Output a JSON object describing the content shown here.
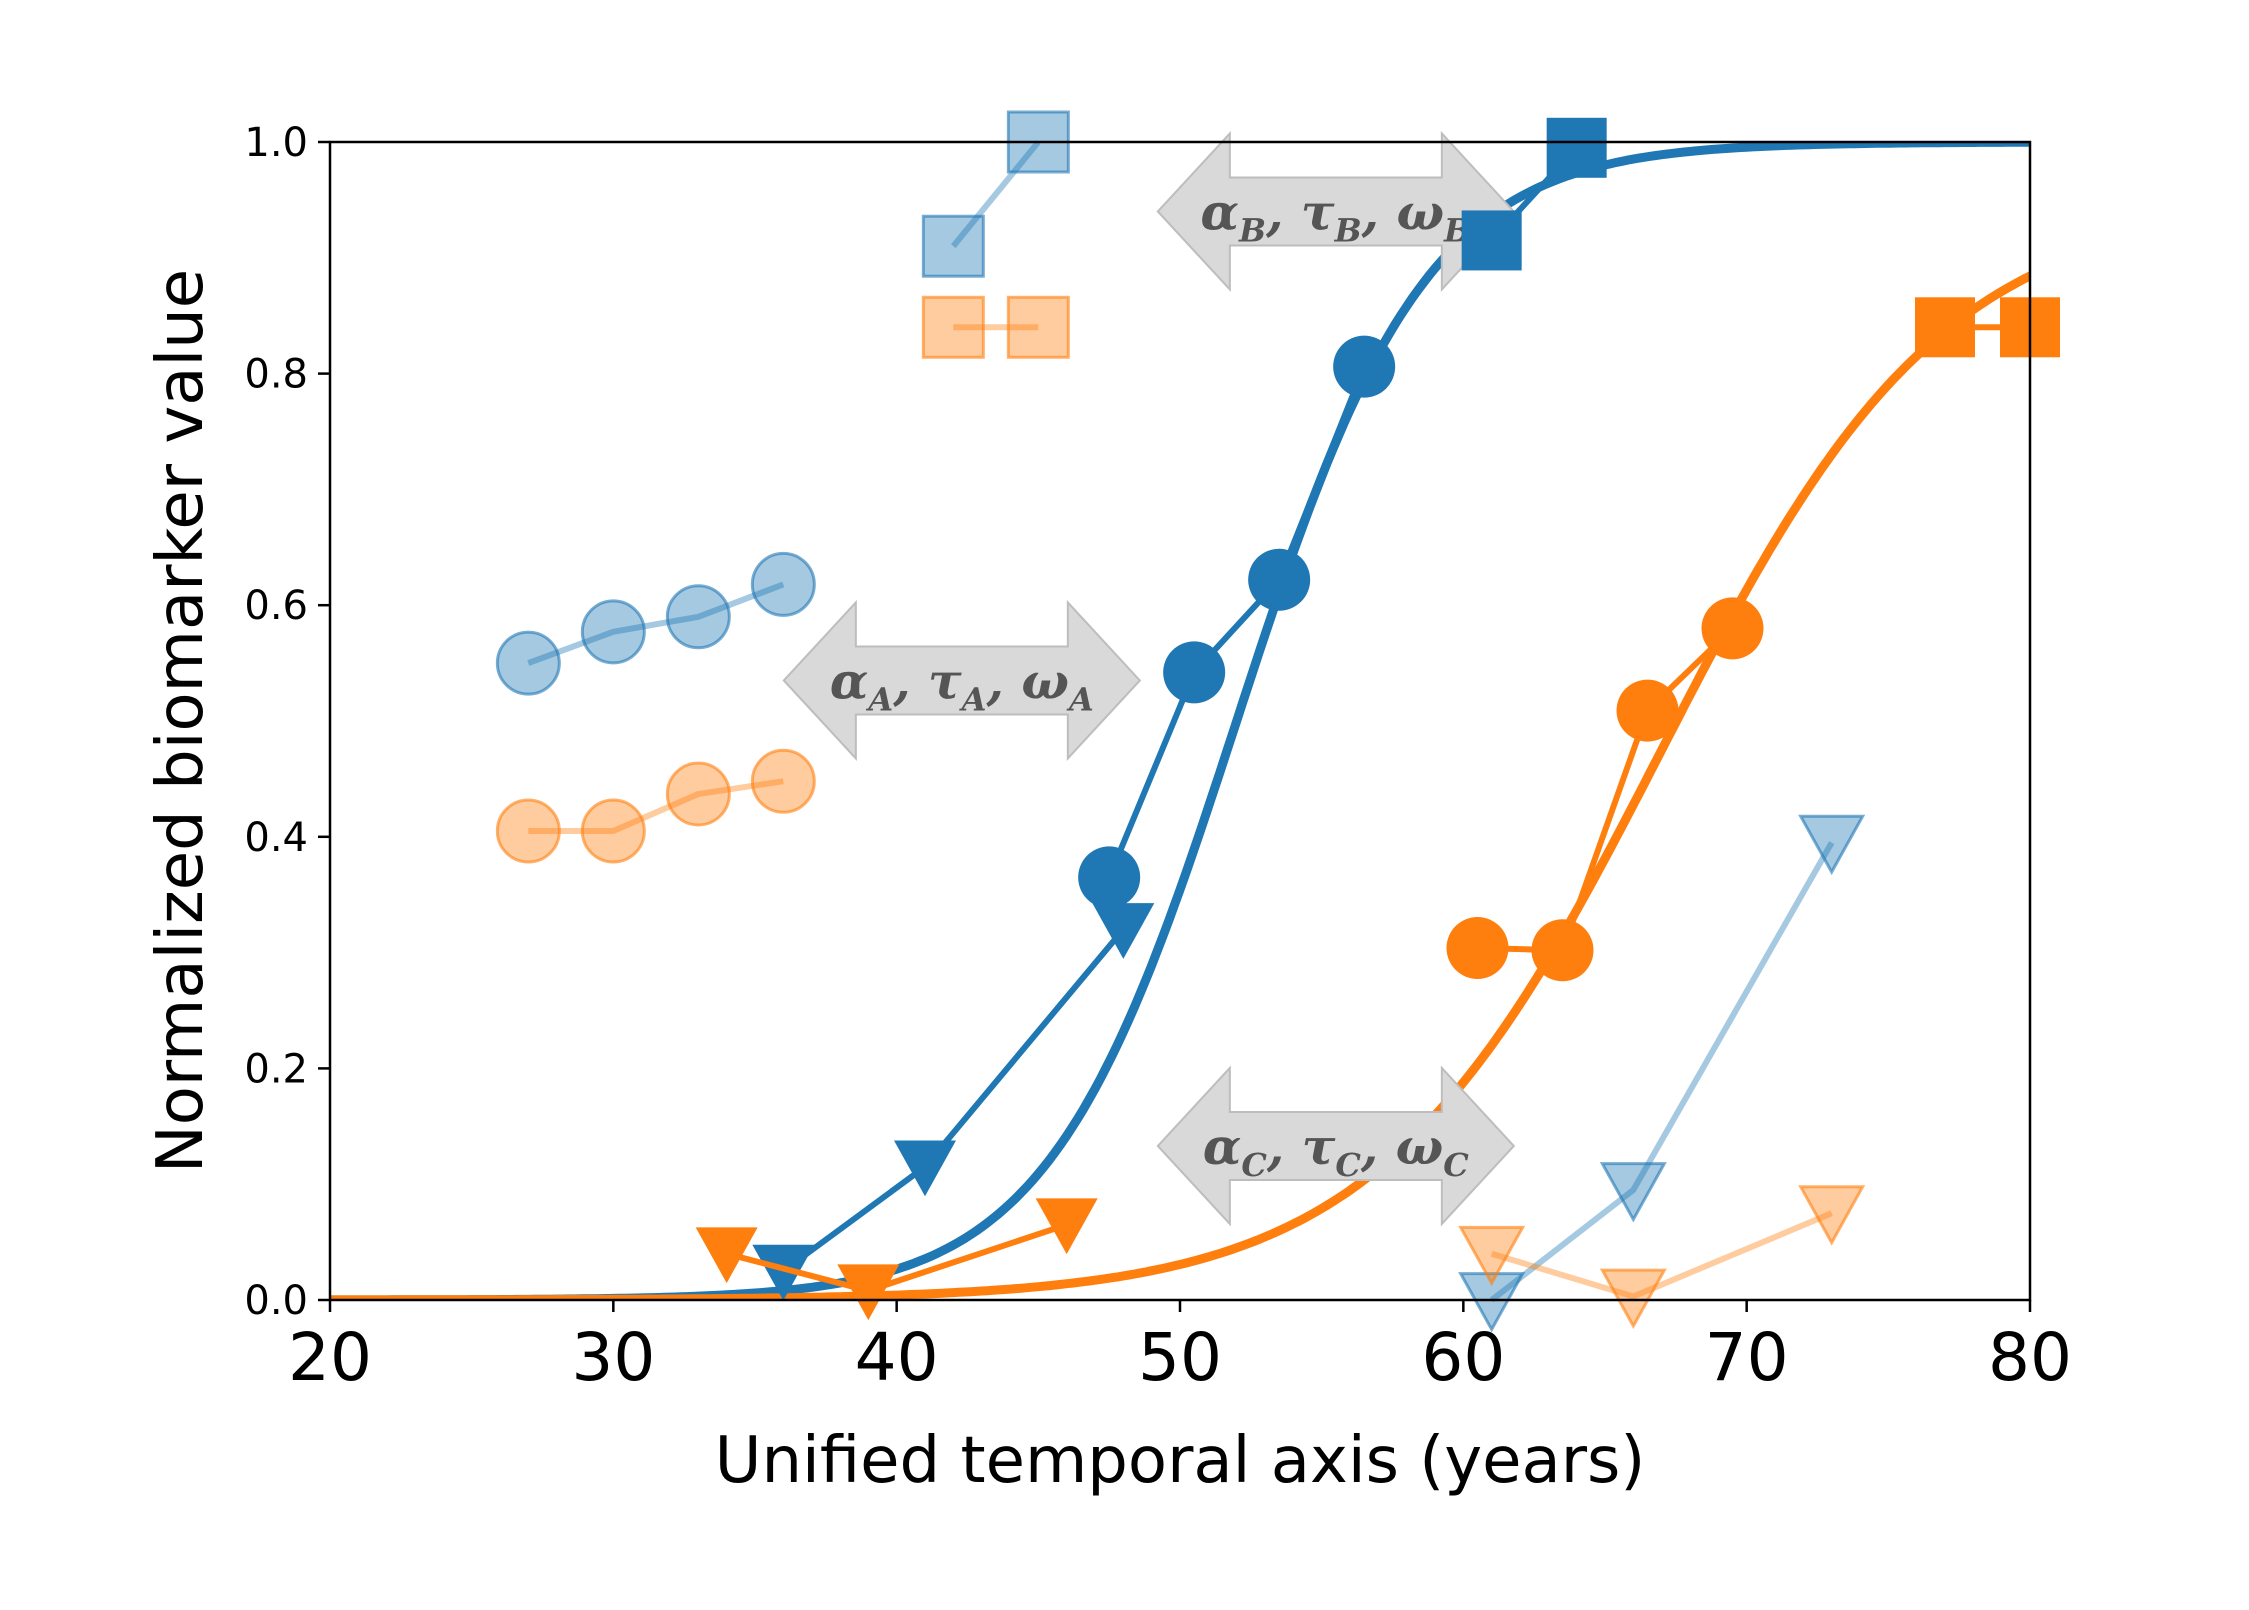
{
  "chart_data": {
    "type": "line",
    "xlabel": "Unified temporal axis (years)",
    "ylabel": "Normalized biomarker value",
    "xlim": [
      20,
      80
    ],
    "ylim": [
      0,
      1
    ],
    "x_ticks": [
      "20",
      "30",
      "40",
      "50",
      "60",
      "70",
      "80"
    ],
    "y_ticks": [
      "0.0",
      "0.2",
      "0.4",
      "0.6",
      "0.8",
      "1.0"
    ],
    "grid": false,
    "colors": {
      "blue": "#1f77b4",
      "orange": "#ff7f0e",
      "arrow_fill": "#d9d9d9",
      "arrow_text": "#555555"
    },
    "curves": [
      {
        "color": "blue",
        "midpoint": 52,
        "rate": 0.3,
        "max": 1.0
      },
      {
        "color": "orange",
        "midpoint": 67,
        "rate": 0.2,
        "max": 0.95
      }
    ],
    "series": [
      {
        "color": "blue",
        "marker": "circle",
        "faded": false,
        "x": [
          47.5,
          50.5,
          53.5,
          56.5
        ],
        "y": [
          0.365,
          0.542,
          0.622,
          0.806
        ]
      },
      {
        "color": "blue",
        "marker": "triangle",
        "faded": false,
        "x": [
          36,
          41,
          48
        ],
        "y": [
          0.025,
          0.115,
          0.32
        ]
      },
      {
        "color": "blue",
        "marker": "square",
        "faded": false,
        "x": [
          61,
          64
        ],
        "y": [
          0.915,
          0.995
        ]
      },
      {
        "color": "orange",
        "marker": "circle",
        "faded": false,
        "x": [
          60.5,
          63.5,
          66.5,
          69.5
        ],
        "y": [
          0.304,
          0.302,
          0.509,
          0.58
        ]
      },
      {
        "color": "orange",
        "marker": "triangle",
        "faded": false,
        "x": [
          34,
          39,
          46
        ],
        "y": [
          0.04,
          0.008,
          0.065
        ]
      },
      {
        "color": "orange",
        "marker": "square",
        "faded": false,
        "x": [
          77,
          80
        ],
        "y": [
          0.84,
          0.84
        ]
      },
      {
        "color": "blue",
        "marker": "circle",
        "faded": true,
        "x": [
          27,
          30,
          33,
          36
        ],
        "y": [
          0.55,
          0.577,
          0.59,
          0.618
        ]
      },
      {
        "color": "orange",
        "marker": "circle",
        "faded": true,
        "x": [
          27,
          30,
          33,
          36
        ],
        "y": [
          0.405,
          0.405,
          0.437,
          0.448
        ]
      },
      {
        "color": "blue",
        "marker": "square",
        "faded": true,
        "x": [
          42,
          45
        ],
        "y": [
          0.91,
          1.0
        ]
      },
      {
        "color": "orange",
        "marker": "square",
        "faded": true,
        "x": [
          42,
          45
        ],
        "y": [
          0.84,
          0.84
        ]
      },
      {
        "color": "blue",
        "marker": "triangle",
        "faded": true,
        "x": [
          61,
          66,
          73
        ],
        "y": [
          0.0,
          0.095,
          0.395
        ]
      },
      {
        "color": "orange",
        "marker": "triangle",
        "faded": true,
        "x": [
          61,
          66,
          73
        ],
        "y": [
          0.04,
          0.003,
          0.075
        ]
      }
    ],
    "annotations": [
      {
        "id": "A",
        "x": 42.3,
        "y": 0.535,
        "text": {
          "a": "α",
          "t": "τ",
          "w": "ω",
          "sub": "A"
        }
      },
      {
        "id": "B",
        "x": 55.5,
        "y": 0.94,
        "text": {
          "a": "α",
          "t": "τ",
          "w": "ω",
          "sub": "B"
        }
      },
      {
        "id": "C",
        "x": 55.5,
        "y": 0.133,
        "text": {
          "a": "α",
          "t": "τ",
          "w": "ω",
          "sub": "C"
        }
      }
    ]
  }
}
